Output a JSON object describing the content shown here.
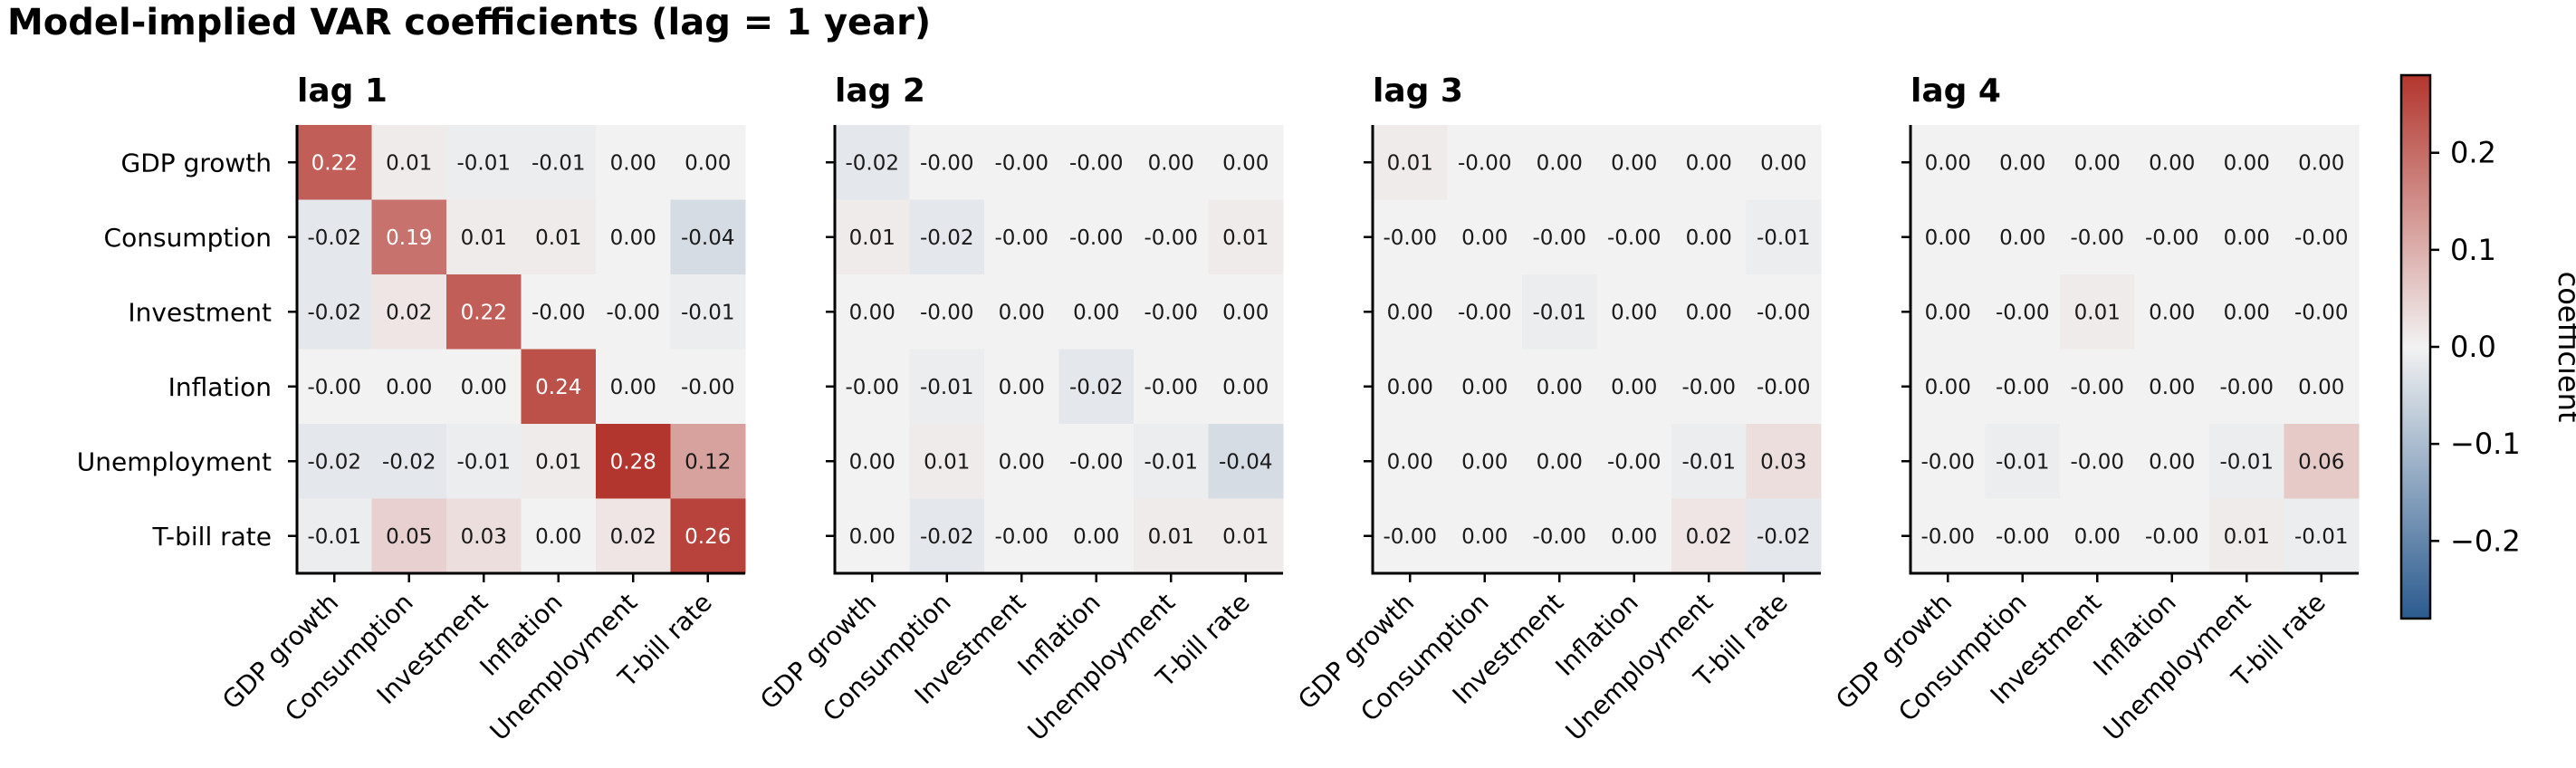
{
  "chart_data": {
    "type": "heatmap",
    "title": "Model-implied VAR coefficients (lag = 1 year)",
    "variables": [
      "GDP growth",
      "Consumption",
      "Investment",
      "Inflation",
      "Unemployment",
      "T-bill rate"
    ],
    "panels": [
      {
        "title": "lag 1",
        "values": [
          [
            0.22,
            0.01,
            -0.01,
            -0.01,
            0.0,
            0.0
          ],
          [
            -0.02,
            0.19,
            0.01,
            0.01,
            0.0,
            -0.04
          ],
          [
            -0.02,
            0.02,
            0.22,
            -0.0,
            -0.0,
            -0.01
          ],
          [
            -0.0,
            0.0,
            0.0,
            0.24,
            0.0,
            -0.0
          ],
          [
            -0.02,
            -0.02,
            -0.01,
            0.01,
            0.28,
            0.12
          ],
          [
            -0.01,
            0.05,
            0.03,
            0.0,
            0.02,
            0.26
          ]
        ],
        "labels": [
          [
            "0.22",
            "0.01",
            "-0.01",
            "-0.01",
            "0.00",
            "0.00"
          ],
          [
            "-0.02",
            "0.19",
            "0.01",
            "0.01",
            "0.00",
            "-0.04"
          ],
          [
            "-0.02",
            "0.02",
            "0.22",
            "-0.00",
            "-0.00",
            "-0.01"
          ],
          [
            "-0.00",
            "0.00",
            "0.00",
            "0.24",
            "0.00",
            "-0.00"
          ],
          [
            "-0.02",
            "-0.02",
            "-0.01",
            "0.01",
            "0.28",
            "0.12"
          ],
          [
            "-0.01",
            "0.05",
            "0.03",
            "0.00",
            "0.02",
            "0.26"
          ]
        ]
      },
      {
        "title": "lag 2",
        "values": [
          [
            -0.02,
            -0.0,
            -0.0,
            -0.0,
            0.0,
            0.0
          ],
          [
            0.01,
            -0.02,
            -0.0,
            -0.0,
            -0.0,
            0.01
          ],
          [
            0.0,
            -0.0,
            0.0,
            0.0,
            -0.0,
            0.0
          ],
          [
            -0.0,
            -0.01,
            0.0,
            -0.02,
            -0.0,
            0.0
          ],
          [
            0.0,
            0.01,
            0.0,
            -0.0,
            -0.01,
            -0.04
          ],
          [
            0.0,
            -0.02,
            -0.0,
            0.0,
            0.01,
            0.01
          ]
        ],
        "labels": [
          [
            "-0.02",
            "-0.00",
            "-0.00",
            "-0.00",
            "0.00",
            "0.00"
          ],
          [
            "0.01",
            "-0.02",
            "-0.00",
            "-0.00",
            "-0.00",
            "0.01"
          ],
          [
            "0.00",
            "-0.00",
            "0.00",
            "0.00",
            "-0.00",
            "0.00"
          ],
          [
            "-0.00",
            "-0.01",
            "0.00",
            "-0.02",
            "-0.00",
            "0.00"
          ],
          [
            "0.00",
            "0.01",
            "0.00",
            "-0.00",
            "-0.01",
            "-0.04"
          ],
          [
            "0.00",
            "-0.02",
            "-0.00",
            "0.00",
            "0.01",
            "0.01"
          ]
        ]
      },
      {
        "title": "lag 3",
        "values": [
          [
            0.01,
            -0.0,
            0.0,
            0.0,
            0.0,
            0.0
          ],
          [
            -0.0,
            0.0,
            -0.0,
            -0.0,
            0.0,
            -0.01
          ],
          [
            0.0,
            -0.0,
            -0.01,
            0.0,
            0.0,
            -0.0
          ],
          [
            0.0,
            0.0,
            0.0,
            0.0,
            -0.0,
            -0.0
          ],
          [
            0.0,
            0.0,
            0.0,
            -0.0,
            -0.01,
            0.03
          ],
          [
            -0.0,
            0.0,
            -0.0,
            0.0,
            0.02,
            -0.02
          ]
        ],
        "labels": [
          [
            "0.01",
            "-0.00",
            "0.00",
            "0.00",
            "0.00",
            "0.00"
          ],
          [
            "-0.00",
            "0.00",
            "-0.00",
            "-0.00",
            "0.00",
            "-0.01"
          ],
          [
            "0.00",
            "-0.00",
            "-0.01",
            "0.00",
            "0.00",
            "-0.00"
          ],
          [
            "0.00",
            "0.00",
            "0.00",
            "0.00",
            "-0.00",
            "-0.00"
          ],
          [
            "0.00",
            "0.00",
            "0.00",
            "-0.00",
            "-0.01",
            "0.03"
          ],
          [
            "-0.00",
            "0.00",
            "-0.00",
            "0.00",
            "0.02",
            "-0.02"
          ]
        ]
      },
      {
        "title": "lag 4",
        "values": [
          [
            0.0,
            0.0,
            0.0,
            0.0,
            0.0,
            0.0
          ],
          [
            0.0,
            0.0,
            -0.0,
            -0.0,
            0.0,
            -0.0
          ],
          [
            0.0,
            -0.0,
            0.01,
            0.0,
            0.0,
            -0.0
          ],
          [
            0.0,
            -0.0,
            -0.0,
            0.0,
            -0.0,
            0.0
          ],
          [
            -0.0,
            -0.01,
            -0.0,
            0.0,
            -0.01,
            0.06
          ],
          [
            -0.0,
            -0.0,
            0.0,
            -0.0,
            0.01,
            -0.01
          ]
        ],
        "labels": [
          [
            "0.00",
            "0.00",
            "0.00",
            "0.00",
            "0.00",
            "0.00"
          ],
          [
            "0.00",
            "0.00",
            "-0.00",
            "-0.00",
            "0.00",
            "-0.00"
          ],
          [
            "0.00",
            "-0.00",
            "0.01",
            "0.00",
            "0.00",
            "-0.00"
          ],
          [
            "0.00",
            "-0.00",
            "-0.00",
            "0.00",
            "-0.00",
            "0.00"
          ],
          [
            "-0.00",
            "-0.01",
            "-0.00",
            "0.00",
            "-0.01",
            "0.06"
          ],
          [
            "-0.00",
            "-0.00",
            "0.00",
            "-0.00",
            "0.01",
            "-0.01"
          ]
        ]
      }
    ],
    "colorbar": {
      "label": "coefficient",
      "range": [
        -0.28,
        0.28
      ],
      "ticks": [
        -0.2,
        -0.1,
        0.0,
        0.1,
        0.2
      ],
      "tick_labels": [
        "−0.2",
        "−0.1",
        "0.0",
        "0.1",
        "0.2"
      ]
    },
    "colormap": {
      "low": "#2b5b8f",
      "mid": "#f2f2f2",
      "high": "#b3362e"
    }
  }
}
